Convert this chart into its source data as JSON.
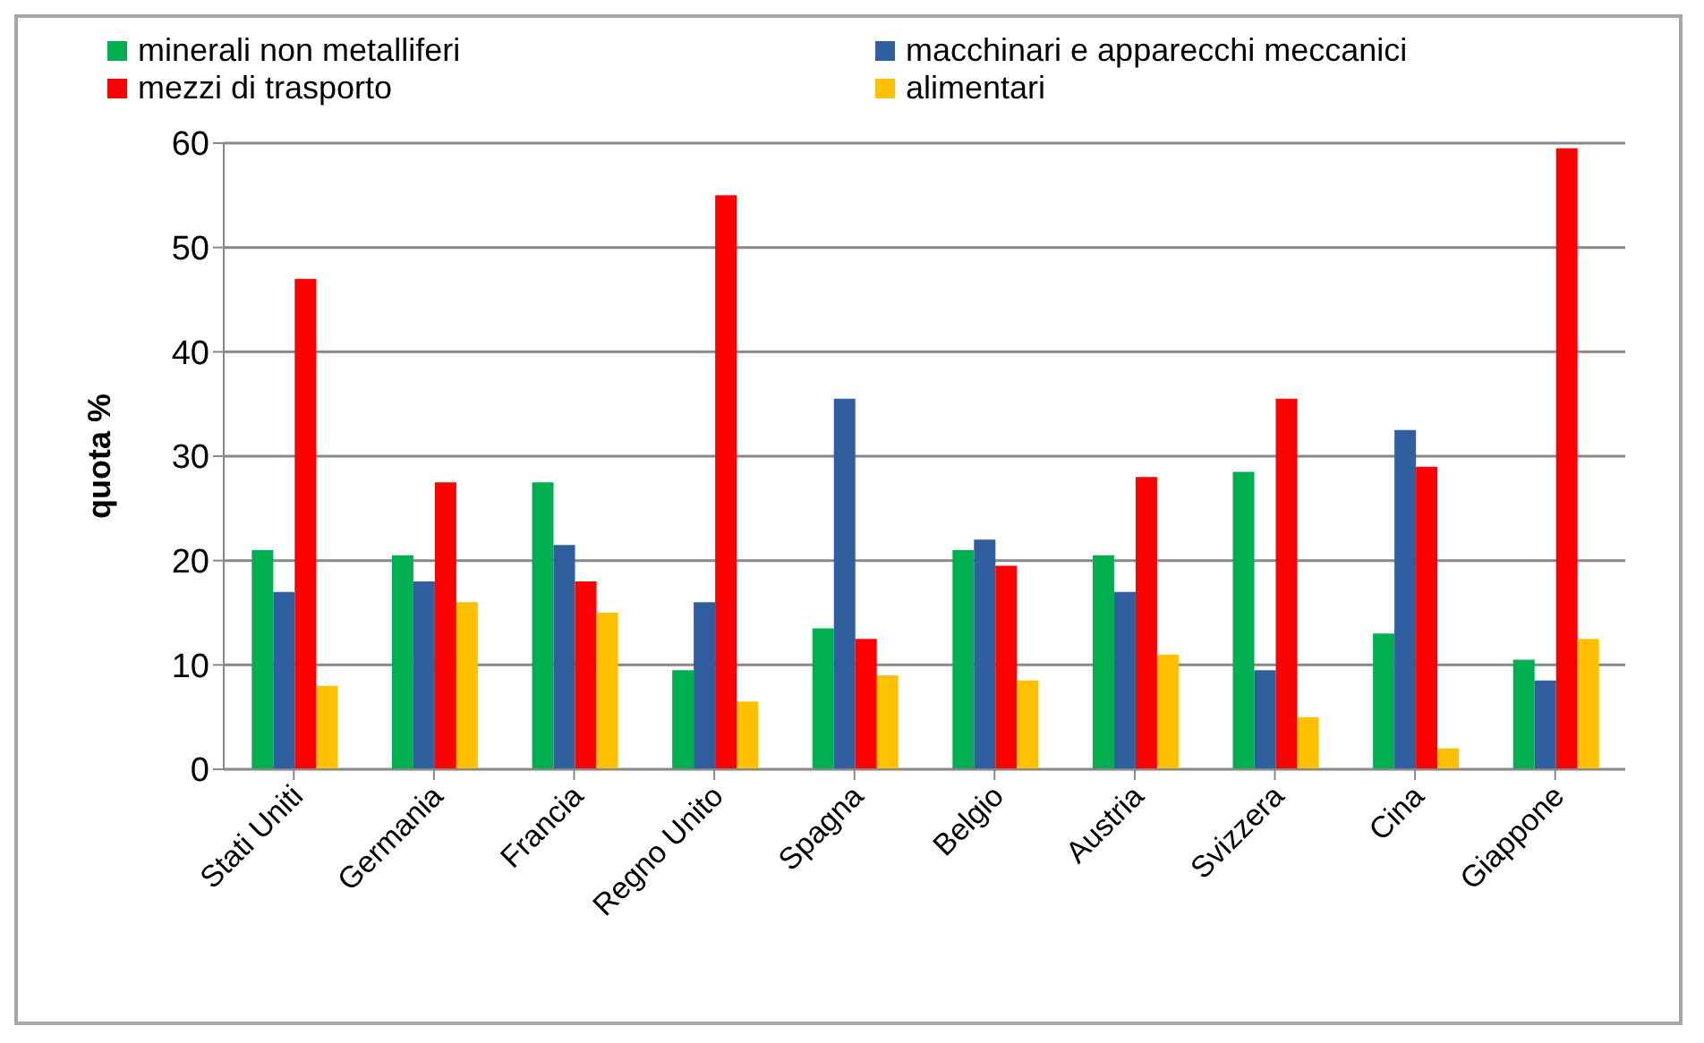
{
  "chart_data": {
    "type": "bar",
    "ylabel": "quota %",
    "categories": [
      "Stati Uniti",
      "Germania",
      "Francia",
      "Regno Unito",
      "Spagna",
      "Belgio",
      "Austria",
      "Svizzera",
      "Cina",
      "Giappone"
    ],
    "series": [
      {
        "name": "minerali non metalliferi",
        "color": "#00b050",
        "values": [
          21,
          20.5,
          27.5,
          9.5,
          13.5,
          21,
          20.5,
          28.5,
          13,
          10.5
        ]
      },
      {
        "name": "macchinari e apparecchi meccanici",
        "color": "#2f5f9e",
        "values": [
          17,
          18,
          21.5,
          16,
          35.5,
          22,
          17,
          9.5,
          32.5,
          8.5
        ]
      },
      {
        "name": "mezzi di trasporto",
        "color": "#ff0000",
        "values": [
          47,
          27.5,
          18,
          55,
          12.5,
          19.5,
          28,
          35.5,
          29,
          59.5
        ]
      },
      {
        "name": "alimentari",
        "color": "#ffc000",
        "values": [
          8,
          16,
          15,
          6.5,
          9,
          8.5,
          11,
          5,
          2,
          12.5
        ]
      }
    ],
    "ylim": [
      0,
      60
    ],
    "yticks": [
      0,
      10,
      20,
      30,
      40,
      50,
      60
    ],
    "grid": "y",
    "legend": "top"
  }
}
